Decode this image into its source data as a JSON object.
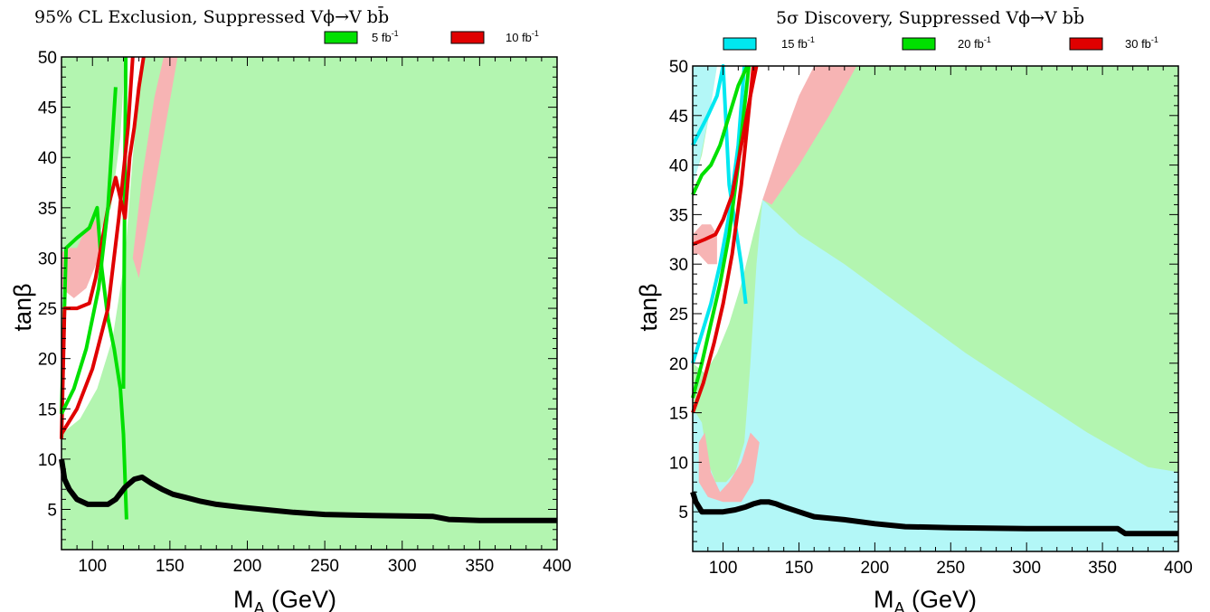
{
  "colors": {
    "green_fill": "#b3f5b0",
    "cyan_fill": "#b3f7f7",
    "pink_fill": "#f7b4b4",
    "green_line": "#00e000",
    "red_line": "#e00000",
    "cyan_line": "#00e8f0",
    "black_line": "#000000"
  },
  "chart_data": [
    {
      "type": "area",
      "title": "95% CL Exclusion, Suppressed Vϕ→V bb̄",
      "xlabel": "M_A (GeV)",
      "ylabel": "tanβ",
      "xlim": [
        80,
        400
      ],
      "ylim": [
        1,
        50
      ],
      "xticks": [
        100,
        150,
        200,
        250,
        300,
        350,
        400
      ],
      "yticks": [
        5,
        10,
        15,
        20,
        25,
        30,
        35,
        40,
        45,
        50
      ],
      "legend_position": "top",
      "legend": [
        {
          "label": "5 fb",
          "sup": "-1",
          "color": "#00e000"
        },
        {
          "label": "10 fb",
          "sup": "-1",
          "color": "#e00000"
        }
      ],
      "series": [
        {
          "name": "5 fb-1",
          "color": "#00e000",
          "x": [
            80,
            83,
            90,
            98,
            103,
            106,
            110,
            114,
            118,
            120,
            122
          ],
          "y": [
            14.5,
            31,
            32,
            33,
            35,
            29,
            24,
            21,
            17,
            12.5,
            4
          ]
        },
        {
          "name": "5 fb-1",
          "color": "#00e000",
          "x": [
            120,
            120.5,
            121,
            121.5
          ],
          "y": [
            17,
            30,
            40,
            50
          ]
        },
        {
          "name": "10 fb-1",
          "color": "#e00000",
          "x": [
            80,
            82,
            90,
            98,
            102,
            110,
            115,
            121,
            124,
            127,
            130,
            133
          ],
          "y": [
            12,
            25,
            25,
            25.5,
            28,
            35,
            38,
            34,
            40,
            43,
            47,
            50
          ]
        },
        {
          "name": "10 fb-1",
          "color": "#e00000",
          "x": [
            80,
            90,
            100,
            110,
            117,
            123,
            126
          ],
          "y": [
            12.5,
            15,
            19,
            25,
            34,
            43,
            50
          ]
        },
        {
          "name": "5 fb-1",
          "color": "#00e000",
          "x": [
            80,
            88,
            96,
            104,
            110,
            115
          ],
          "y": [
            14.5,
            17,
            21,
            27,
            35,
            47
          ]
        },
        {
          "name": "",
          "color": "#000000",
          "x": [
            80,
            82,
            85,
            90,
            97,
            104,
            110,
            115,
            121,
            127,
            132,
            138,
            145,
            152,
            160,
            170,
            180,
            197,
            210,
            230,
            250,
            280,
            320,
            330,
            350,
            400
          ],
          "y": [
            10,
            8,
            7,
            6,
            5.5,
            5.5,
            5.5,
            6,
            7.2,
            8,
            8.2,
            7.6,
            7,
            6.5,
            6.2,
            5.8,
            5.5,
            5.2,
            5,
            4.7,
            4.5,
            4.4,
            4.3,
            4,
            3.9,
            3.9
          ]
        }
      ]
    },
    {
      "type": "area",
      "title": "5σ Discovery, Suppressed Vϕ→V bb̄",
      "xlabel": "M_A (GeV)",
      "ylabel": "tanβ",
      "xlim": [
        80,
        400
      ],
      "ylim": [
        1,
        50
      ],
      "xticks": [
        100,
        150,
        200,
        250,
        300,
        350,
        400
      ],
      "yticks": [
        5,
        10,
        15,
        20,
        25,
        30,
        35,
        40,
        45,
        50
      ],
      "legend_position": "top",
      "legend": [
        {
          "label": "15 fb",
          "sup": "-1",
          "color": "#00e8f0"
        },
        {
          "label": "20 fb",
          "sup": "-1",
          "color": "#00e000"
        },
        {
          "label": "30 fb",
          "sup": "-1",
          "color": "#e00000"
        }
      ],
      "series": [
        {
          "name": "15 fb-1",
          "color": "#00e8f0",
          "x": [
            80,
            85,
            90,
            96,
            100,
            104,
            108,
            112,
            115
          ],
          "y": [
            42,
            43.5,
            45,
            47,
            50,
            38,
            34,
            30,
            26
          ]
        },
        {
          "name": "15 fb-1",
          "color": "#00e8f0",
          "x": [
            80,
            86,
            92,
            98,
            104,
            110,
            114
          ],
          "y": [
            20,
            23,
            26,
            30,
            35,
            42,
            50
          ]
        },
        {
          "name": "20 fb-1",
          "color": "#00e000",
          "x": [
            80,
            86,
            92,
            98,
            104,
            110,
            116
          ],
          "y": [
            37,
            39,
            40,
            42,
            45,
            48,
            50
          ]
        },
        {
          "name": "20 fb-1",
          "color": "#00e000",
          "x": [
            80,
            86,
            92,
            98,
            104,
            110,
            117
          ],
          "y": [
            16.5,
            20,
            24,
            28,
            33,
            40,
            50
          ]
        },
        {
          "name": "30 fb-1",
          "color": "#e00000",
          "x": [
            80,
            88,
            95,
            100,
            106,
            112,
            118,
            122
          ],
          "y": [
            32,
            32.5,
            33,
            34.5,
            37,
            42,
            47,
            50
          ]
        },
        {
          "name": "30 fb-1",
          "color": "#e00000",
          "x": [
            80,
            87,
            94,
            100,
            106,
            112,
            120
          ],
          "y": [
            15,
            18,
            22,
            26,
            31,
            38,
            50
          ]
        },
        {
          "name": "",
          "color": "#000000",
          "x": [
            80,
            82,
            86,
            92,
            100,
            108,
            115,
            120,
            125,
            130,
            135,
            140,
            150,
            160,
            180,
            200,
            220,
            250,
            300,
            360,
            365,
            370,
            400
          ],
          "y": [
            7,
            6,
            5,
            5,
            5,
            5.2,
            5.5,
            5.8,
            6,
            6,
            5.8,
            5.5,
            5,
            4.5,
            4.2,
            3.8,
            3.5,
            3.4,
            3.3,
            3.3,
            2.8,
            2.8,
            2.8
          ]
        }
      ]
    }
  ]
}
